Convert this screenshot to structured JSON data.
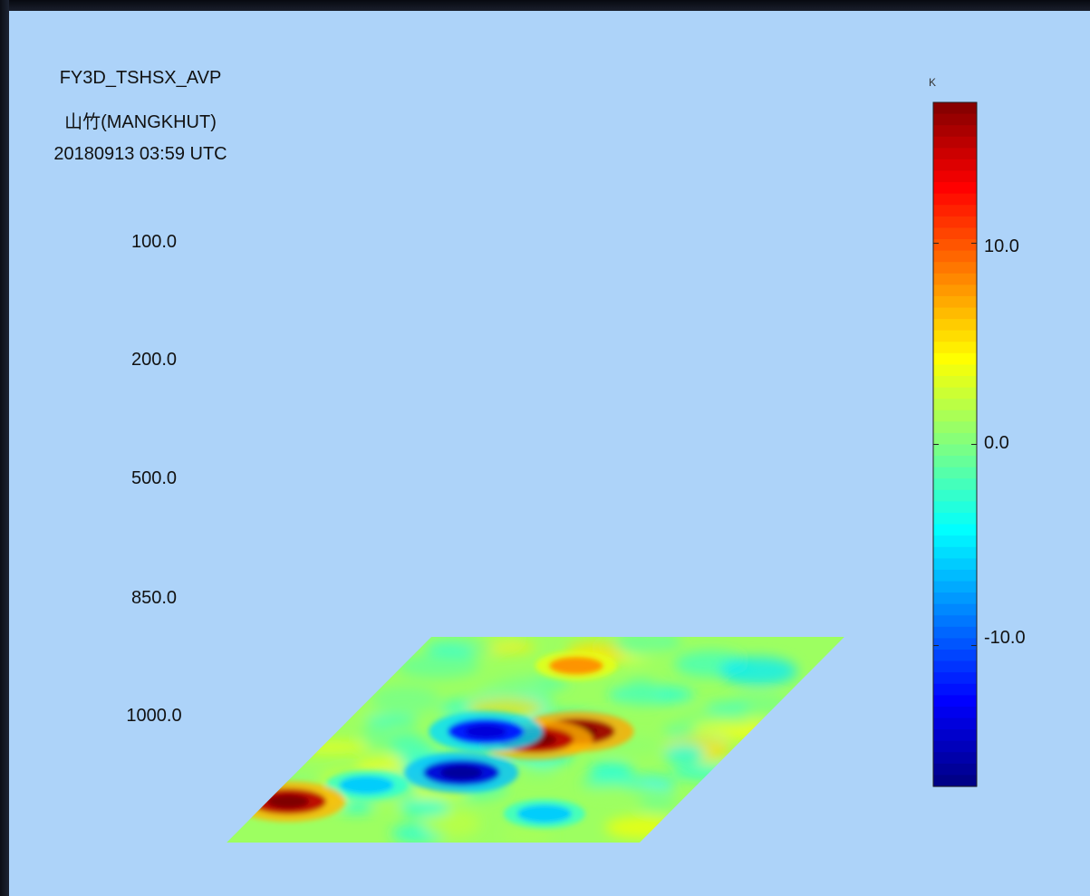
{
  "chart_data": {
    "type": "heatmap",
    "title": "FY3D_TSHSX_AVP",
    "subtitle": "山竹(MANGKHUT)",
    "time": "20180913 03:59 UTC",
    "pressure_levels": [
      "100.0",
      "200.0",
      "500.0",
      "850.0",
      "1000.0"
    ],
    "colorbar": {
      "unit": "K",
      "range": [
        -17,
        17
      ],
      "ticks": [
        {
          "value": 10,
          "label": "10.0"
        },
        {
          "value": 0,
          "label": "0.0"
        },
        {
          "value": -10,
          "label": "-10.0"
        }
      ],
      "colors": [
        "#00007f",
        "#0000ff",
        "#007fff",
        "#00ffff",
        "#7fff7f",
        "#ffff00",
        "#ff7f00",
        "#ff0000",
        "#7f0000"
      ]
    },
    "field_level": "1000.0",
    "field_background_value": 1,
    "field_features": [
      {
        "kind": "warm",
        "value": 16,
        "x": 0.58,
        "y": 0.46
      },
      {
        "kind": "warm",
        "value": 15,
        "x": 0.5,
        "y": 0.5
      },
      {
        "kind": "cold",
        "value": -14,
        "x": 0.4,
        "y": 0.66
      },
      {
        "kind": "cold",
        "value": -12,
        "x": 0.36,
        "y": 0.46
      },
      {
        "kind": "cool",
        "value": -6,
        "x": 0.2,
        "y": 0.72
      },
      {
        "kind": "cool",
        "value": -6,
        "x": 0.7,
        "y": 0.86
      },
      {
        "kind": "warm",
        "value": 8,
        "x": 0.42,
        "y": 0.14
      },
      {
        "kind": "warm",
        "value": 15,
        "x": 0.05,
        "y": 0.8
      }
    ]
  }
}
